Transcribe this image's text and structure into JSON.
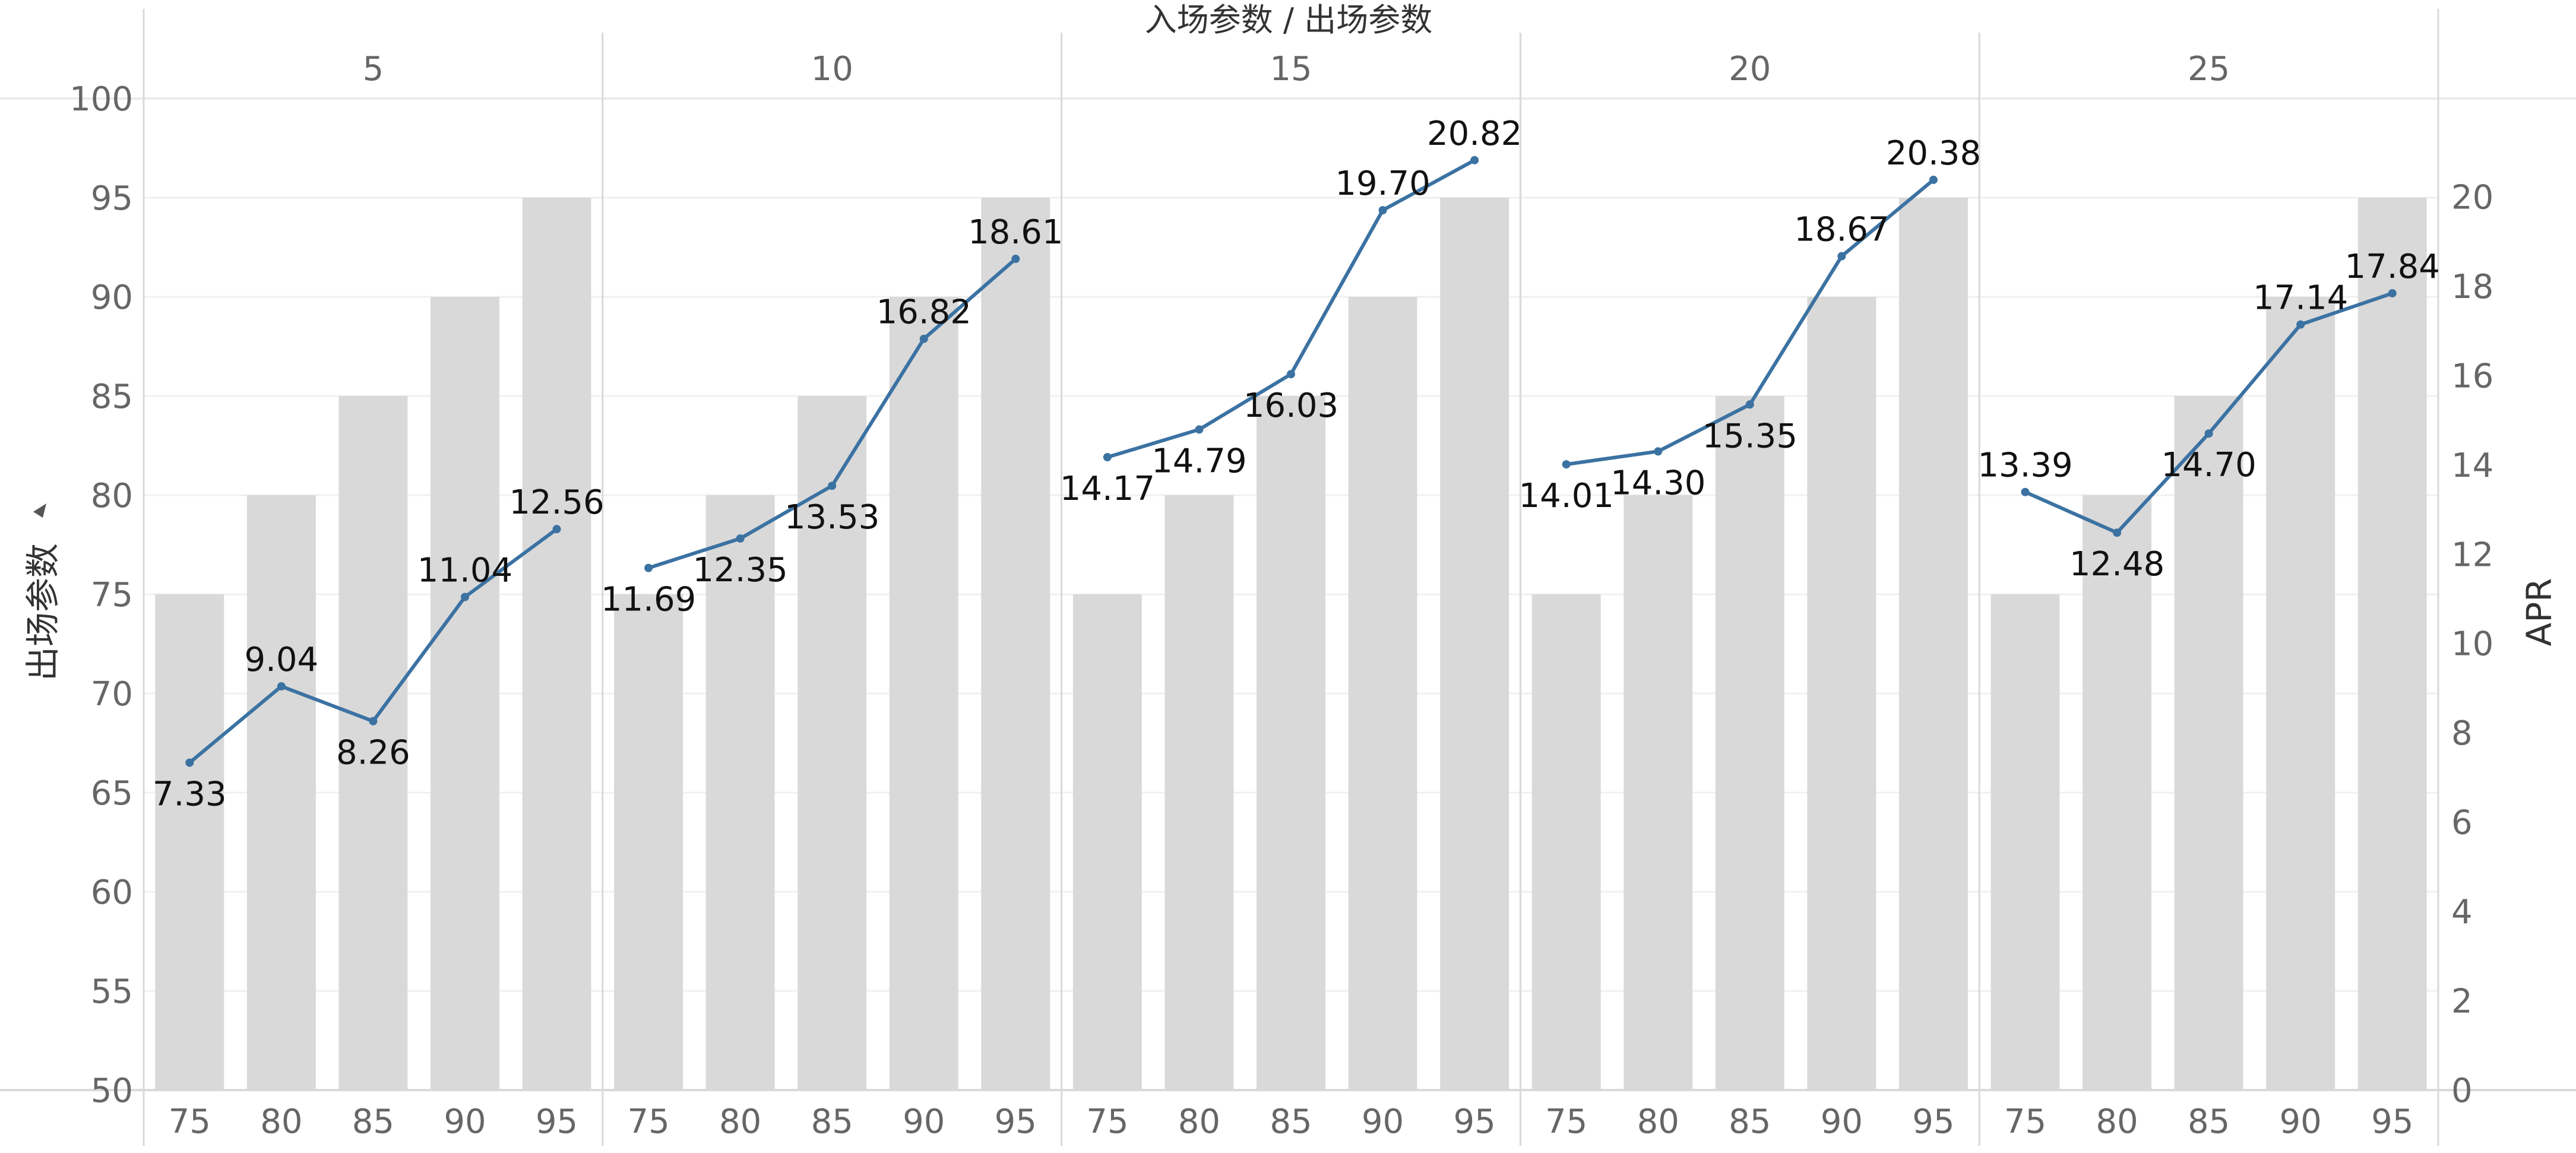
{
  "chart_data": {
    "type": "bar+line",
    "title": "入场参数 / 出场参数",
    "panels": [
      "5",
      "10",
      "15",
      "20",
      "25"
    ],
    "categories": [
      "75",
      "80",
      "85",
      "90",
      "95"
    ],
    "bar_series": {
      "name": "出场参数",
      "color": "#d9d9d9",
      "values": [
        [
          75,
          80,
          85,
          90,
          95
        ],
        [
          75,
          80,
          85,
          90,
          95
        ],
        [
          75,
          80,
          85,
          90,
          95
        ],
        [
          75,
          80,
          85,
          90,
          95
        ],
        [
          75,
          80,
          85,
          90,
          95
        ]
      ]
    },
    "line_series": {
      "name": "APR",
      "color": "#3b72a2",
      "values": [
        [
          7.33,
          9.04,
          8.26,
          11.04,
          12.56
        ],
        [
          11.69,
          12.35,
          13.53,
          16.82,
          18.61
        ],
        [
          14.17,
          14.79,
          16.03,
          19.7,
          20.82
        ],
        [
          14.01,
          14.3,
          15.35,
          18.67,
          20.38
        ],
        [
          13.39,
          12.48,
          14.7,
          17.14,
          17.84
        ]
      ],
      "labels": [
        [
          "7.33",
          "9.04",
          "8.26",
          "11.04",
          "12.56"
        ],
        [
          "11.69",
          "12.35",
          "13.53",
          "16.82",
          "18.61"
        ],
        [
          "14.17",
          "14.79",
          "16.03",
          "19.70",
          "20.82"
        ],
        [
          "14.01",
          "14.30",
          "15.35",
          "18.67",
          "20.38"
        ],
        [
          "13.39",
          "12.48",
          "14.70",
          "17.14",
          "17.84"
        ]
      ],
      "label_positions": [
        [
          "below",
          "above",
          "below",
          "above",
          "above"
        ],
        [
          "below",
          "below",
          "below",
          "above",
          "above"
        ],
        [
          "below",
          "below",
          "below",
          "above",
          "above"
        ],
        [
          "below",
          "below",
          "below",
          "above",
          "above"
        ],
        [
          "above",
          "below",
          "below",
          "above",
          "above"
        ]
      ]
    },
    "y_left": {
      "label": "出场参数",
      "range": [
        50,
        100
      ],
      "ticks": [
        "50",
        "55",
        "60",
        "65",
        "70",
        "75",
        "80",
        "85",
        "90",
        "95",
        "100"
      ]
    },
    "y_right": {
      "label": "APR",
      "range": [
        0,
        22.2
      ],
      "ticks": [
        "0",
        "2",
        "4",
        "6",
        "8",
        "10",
        "12",
        "14",
        "16",
        "18",
        "20"
      ]
    },
    "grid": true,
    "legend": "none"
  }
}
